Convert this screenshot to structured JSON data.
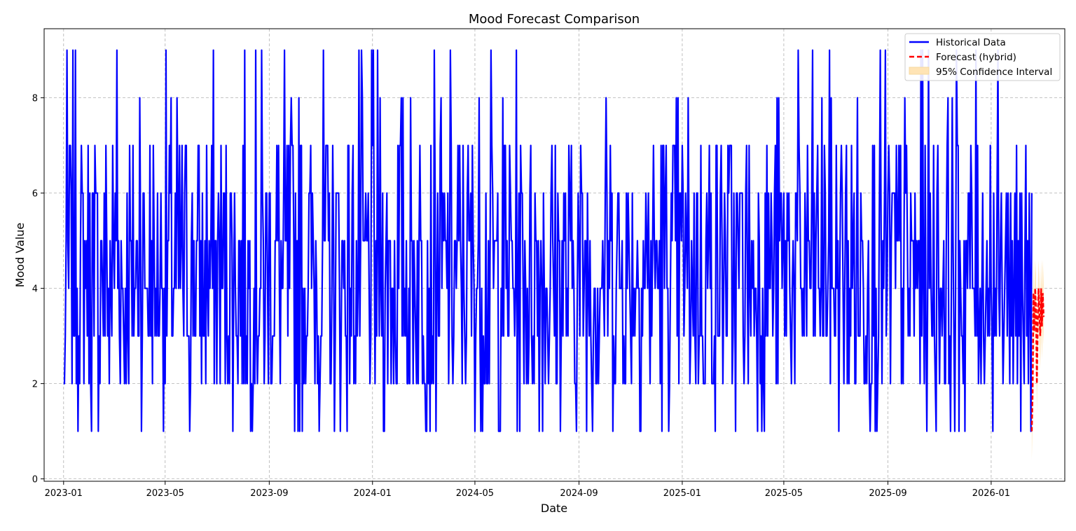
{
  "chart_data": {
    "type": "line",
    "title": "Mood Forecast Comparison",
    "xlabel": "Date",
    "ylabel": "Mood Value",
    "xlim": [
      "2022-12-09",
      "2026-03-29"
    ],
    "ylim": [
      -0.05,
      9.45
    ],
    "x_ticks": [
      "2023-01",
      "2023-05",
      "2023-09",
      "2024-01",
      "2024-05",
      "2024-09",
      "2025-01",
      "2025-05",
      "2025-09",
      "2026-01"
    ],
    "y_ticks": [
      0,
      2,
      4,
      6,
      8
    ],
    "grid": true,
    "legend_position": "top-right",
    "legend": [
      {
        "label": "Historical Data",
        "color": "#0000ff",
        "style": "solid"
      },
      {
        "label": "Forecast (hybrid)",
        "color": "#ff0000",
        "style": "dashed"
      },
      {
        "label": "95% Confidence Interval",
        "color": "#ffe4b5",
        "style": "fill"
      }
    ],
    "historical": {
      "name": "Historical Data",
      "color": "#0000ff",
      "start_date": "2023-01-01",
      "end_date": "2026-02-18",
      "values_min": 1,
      "values_max": 9,
      "sample_values": [
        2,
        3,
        5,
        4,
        5,
        4,
        5,
        4,
        3,
        6,
        2,
        7,
        2,
        6,
        2,
        4,
        6,
        7,
        3,
        1,
        5,
        9,
        3,
        5,
        2,
        8,
        3,
        5,
        2,
        1,
        3,
        7,
        9,
        1,
        5,
        7,
        3,
        6,
        2,
        6,
        4,
        7,
        5,
        7,
        2,
        5,
        7,
        6,
        3,
        5,
        8,
        4,
        6,
        4,
        2,
        1,
        5,
        7,
        2,
        7,
        3,
        6,
        7,
        9,
        5,
        7,
        6,
        4,
        3,
        5,
        7,
        6,
        2,
        5,
        6,
        4,
        2,
        7,
        8,
        3,
        5,
        3,
        7,
        6,
        2,
        4,
        5,
        6,
        3,
        7,
        8,
        2,
        6,
        4,
        7,
        3,
        5,
        1,
        2,
        4,
        6,
        3,
        5,
        7,
        2,
        4,
        6,
        8,
        3,
        5,
        2,
        7,
        4,
        6,
        3,
        5,
        7,
        4,
        2,
        6
      ],
      "tail_sample": [
        4,
        2,
        6,
        3,
        5,
        2,
        4,
        6,
        3,
        7,
        2,
        5,
        3,
        6,
        1,
        6,
        4,
        3,
        2,
        5,
        7,
        3,
        5,
        2,
        6,
        4,
        1,
        6
      ]
    },
    "forecast": {
      "name": "Forecast (hybrid)",
      "color": "#ff0000",
      "start_date": "2026-02-18",
      "end_date": "2026-03-04",
      "values": [
        1.0,
        1.8,
        3.9,
        3.1,
        4.0,
        3.6,
        2.0,
        3.2,
        4.0,
        3.5,
        3.0,
        4.0,
        3.2,
        3.9,
        3.4
      ]
    },
    "confidence_interval": {
      "name": "95% Confidence Interval",
      "color": "#ffe4b5",
      "lower": [
        0.4,
        1.2,
        3.2,
        2.4,
        3.4,
        2.9,
        1.4,
        2.5,
        3.3,
        2.8,
        2.3,
        3.3,
        2.5,
        3.2,
        2.8
      ],
      "upper": [
        1.6,
        2.5,
        4.6,
        3.8,
        4.6,
        4.3,
        2.7,
        3.9,
        4.6,
        4.2,
        3.7,
        4.6,
        3.9,
        4.6,
        4.1
      ]
    }
  }
}
